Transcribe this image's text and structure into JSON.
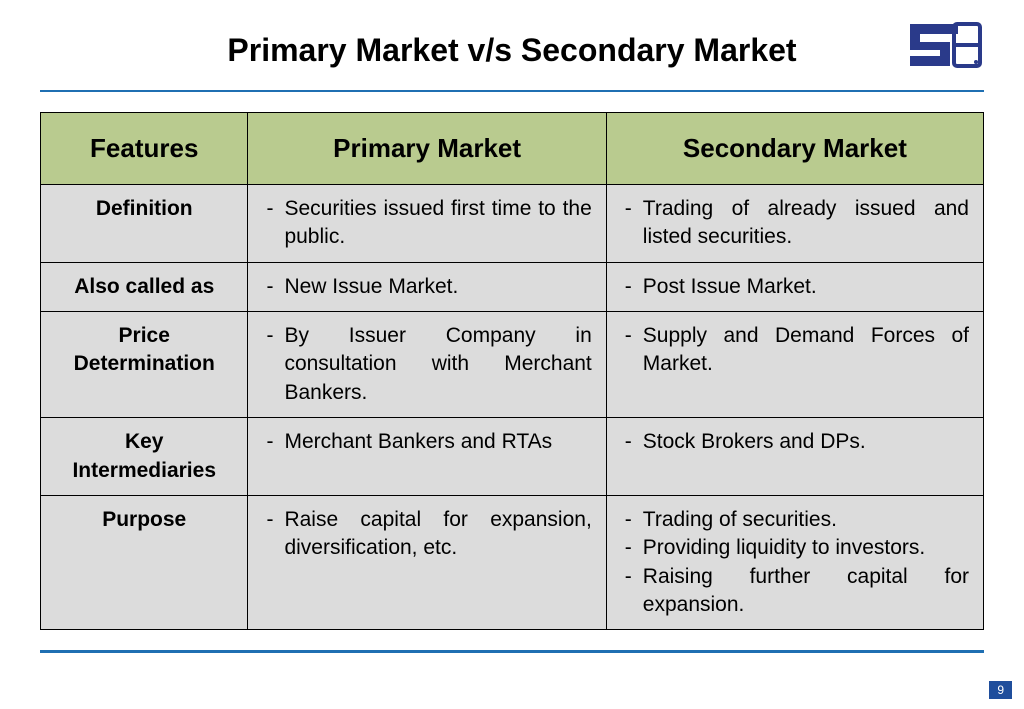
{
  "slide": {
    "title": "Primary Market v/s Secondary Market",
    "page_number": "9",
    "logo_name": "sebi-logo",
    "colors": {
      "rule": "#1f6fb2",
      "header_bg": "#b9cb8f",
      "body_bg": "#dcdcdc",
      "logo": "#2a3a8a",
      "page_badge_bg": "#1f4e9c",
      "page_badge_text": "#ffffff",
      "border": "#000000"
    },
    "typography": {
      "title_fontsize": 32,
      "header_fontsize": 26,
      "cell_fontsize": 21,
      "font_family": "Arial"
    }
  },
  "table": {
    "type": "table",
    "columns": [
      "Features",
      "Primary Market",
      "Secondary Market"
    ],
    "column_widths_pct": [
      22,
      38,
      40
    ],
    "rows": [
      {
        "feature": "Definition",
        "primary": [
          "Securities issued first time to the public."
        ],
        "secondary": [
          "Trading of already issued and listed securities."
        ]
      },
      {
        "feature": "Also called as",
        "primary": [
          "New Issue Market."
        ],
        "secondary": [
          "Post Issue Market."
        ]
      },
      {
        "feature": "Price Determination",
        "primary": [
          "By Issuer Company in consultation with Merchant Bankers."
        ],
        "secondary": [
          "Supply and Demand Forces of Market."
        ]
      },
      {
        "feature": "Key Intermediaries",
        "primary": [
          "Merchant Bankers and RTAs"
        ],
        "secondary": [
          "Stock Brokers and DPs."
        ]
      },
      {
        "feature": "Purpose",
        "primary": [
          "Raise capital for expansion, diversification, etc."
        ],
        "secondary": [
          "Trading of securities.",
          "Providing liquidity to investors.",
          "Raising further capital for expansion."
        ]
      }
    ]
  }
}
